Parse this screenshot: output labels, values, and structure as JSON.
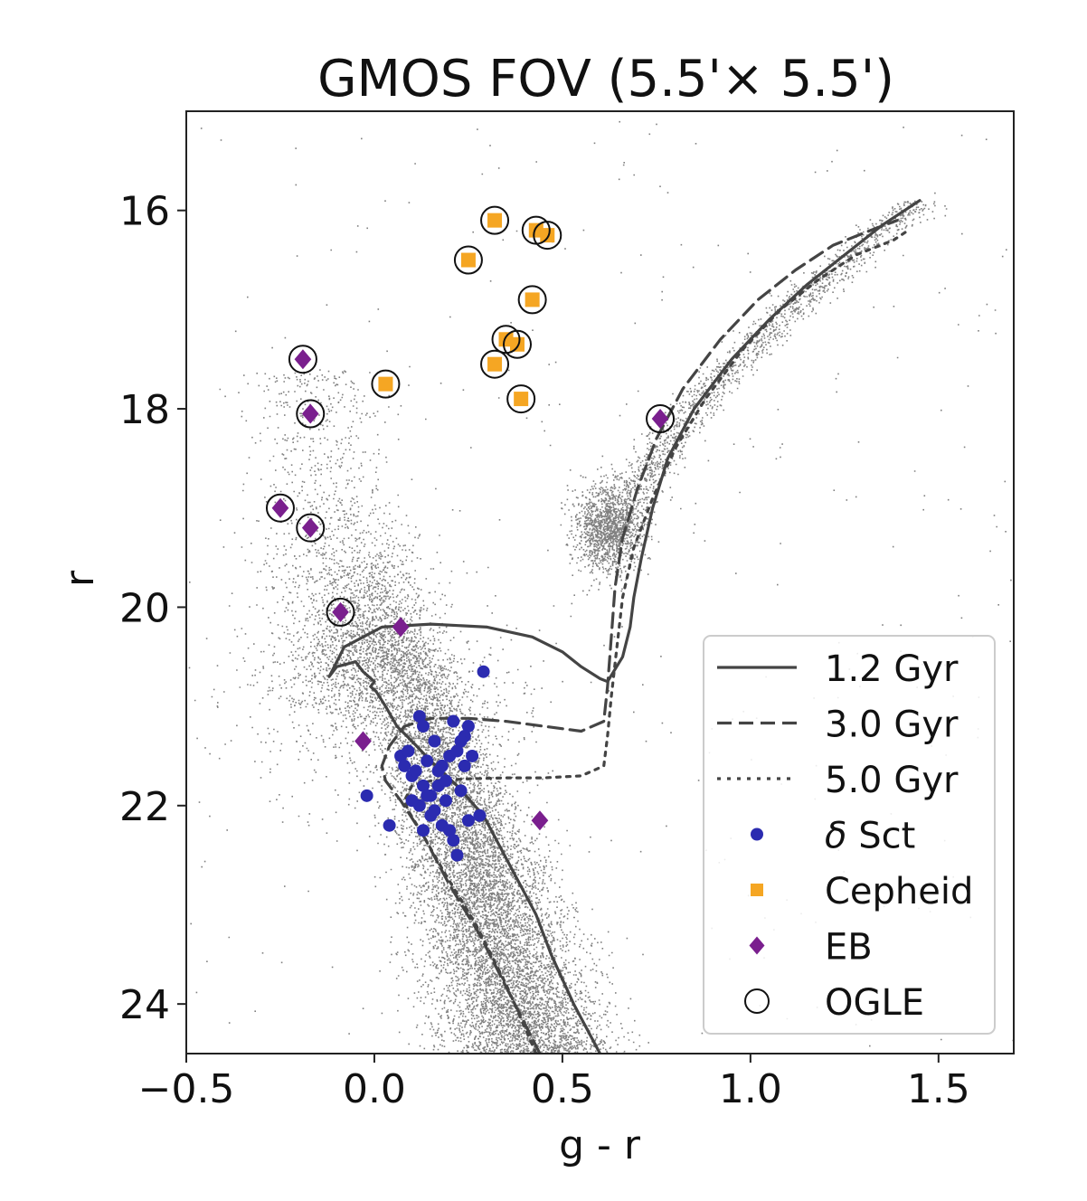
{
  "chart_data": {
    "type": "scatter",
    "title": "GMOS FOV (5.5'× 5.5')",
    "xlabel": "g - r",
    "ylabel": "r",
    "xlim": [
      -0.5,
      1.7
    ],
    "ylim": [
      24.5,
      15.0
    ],
    "y_inverted": true,
    "xticks": [
      -0.5,
      0.0,
      0.5,
      1.0,
      1.5
    ],
    "xtick_labels": [
      "−0.5",
      "0.0",
      "0.5",
      "1.0",
      "1.5"
    ],
    "yticks": [
      16,
      18,
      20,
      22,
      24
    ],
    "ytick_labels": [
      "16",
      "18",
      "20",
      "22",
      "24"
    ],
    "grid": false,
    "legend_position": "bottom-right",
    "background_stars": {
      "description_color": "#808080",
      "components": [
        {
          "name": "main sequence",
          "g_r_center": [
            0.06,
            0.42
          ],
          "r_range": [
            20.0,
            24.5
          ]
        },
        {
          "name": "red clump",
          "g_r_center": 0.62,
          "r_center": 19.2
        },
        {
          "name": "red giant branch",
          "g_r_range": [
            0.6,
            1.45
          ],
          "r_range": [
            15.9,
            19.3
          ]
        },
        {
          "name": "blue plume",
          "g_r_center": -0.15,
          "r_range": [
            17.5,
            21.0
          ]
        }
      ]
    },
    "series": [
      {
        "name": "1.2 Gyr",
        "kind": "line",
        "linestyle": "solid",
        "color": "#444444",
        "x": [
          0.6,
          0.53,
          0.47,
          0.43,
          0.36,
          0.29,
          0.22,
          0.15,
          0.1,
          0.06,
          0.03,
          0.005,
          -0.01,
          0.0,
          -0.03,
          -0.05,
          -0.1,
          -0.12,
          -0.08,
          0.02,
          0.15,
          0.3,
          0.42,
          0.5,
          0.55,
          0.6,
          0.62,
          0.66,
          0.68,
          0.69,
          0.71,
          0.74,
          0.78,
          0.85,
          0.95,
          1.05,
          1.15,
          1.25,
          1.35,
          1.45
        ],
        "y": [
          24.5,
          24.0,
          23.5,
          23.1,
          22.6,
          22.1,
          21.8,
          21.55,
          21.35,
          21.2,
          21.0,
          20.85,
          20.8,
          20.75,
          20.65,
          20.55,
          20.6,
          20.7,
          20.4,
          20.2,
          20.17,
          20.2,
          20.3,
          20.45,
          20.6,
          20.72,
          20.75,
          20.5,
          20.2,
          19.9,
          19.5,
          19.0,
          18.5,
          18.0,
          17.5,
          17.1,
          16.75,
          16.45,
          16.15,
          15.9
        ]
      },
      {
        "name": "3.0 Gyr",
        "kind": "line",
        "linestyle": "dashed",
        "color": "#444444",
        "x": [
          0.44,
          0.36,
          0.28,
          0.2,
          0.13,
          0.07,
          0.03,
          0.02,
          0.04,
          0.08,
          0.15,
          0.25,
          0.35,
          0.45,
          0.55,
          0.61,
          0.62,
          0.63,
          0.64,
          0.66,
          0.7,
          0.75,
          0.82,
          0.92,
          1.02,
          1.12,
          1.22,
          1.32,
          1.39
        ],
        "y": [
          24.5,
          23.9,
          23.3,
          22.8,
          22.3,
          21.95,
          21.75,
          21.6,
          21.4,
          21.2,
          21.12,
          21.12,
          21.15,
          21.2,
          21.25,
          21.15,
          20.8,
          20.3,
          19.8,
          19.3,
          18.8,
          18.3,
          17.8,
          17.3,
          16.9,
          16.6,
          16.35,
          16.2,
          16.1
        ]
      },
      {
        "name": "5.0 Gyr",
        "kind": "line",
        "linestyle": "dotted",
        "color": "#444444",
        "x": [
          0.43,
          0.35,
          0.27,
          0.19,
          0.13,
          0.09,
          0.08,
          0.1,
          0.15,
          0.25,
          0.35,
          0.45,
          0.55,
          0.61,
          0.62,
          0.63,
          0.645,
          0.66,
          0.69,
          0.74,
          0.8,
          0.88,
          0.98,
          1.08,
          1.18,
          1.28,
          1.38,
          1.42
        ],
        "y": [
          24.5,
          23.8,
          23.2,
          22.7,
          22.3,
          22.05,
          21.95,
          21.8,
          21.75,
          21.73,
          21.72,
          21.72,
          21.7,
          21.6,
          21.3,
          20.9,
          20.4,
          19.9,
          19.4,
          18.9,
          18.4,
          17.9,
          17.4,
          17.0,
          16.7,
          16.45,
          16.3,
          16.2
        ]
      },
      {
        "name": "δ Sct",
        "kind": "scatter",
        "marker": "circle",
        "color": "#2b2bb0",
        "points": [
          [
            0.29,
            20.65
          ],
          [
            -0.02,
            21.9
          ],
          [
            0.04,
            22.2
          ],
          [
            0.12,
            21.1
          ],
          [
            0.07,
            21.5
          ],
          [
            0.09,
            21.45
          ],
          [
            0.13,
            21.2
          ],
          [
            0.21,
            21.15
          ],
          [
            0.25,
            21.2
          ],
          [
            0.24,
            21.3
          ],
          [
            0.1,
            21.7
          ],
          [
            0.13,
            21.8
          ],
          [
            0.15,
            21.9
          ],
          [
            0.17,
            21.8
          ],
          [
            0.19,
            21.75
          ],
          [
            0.18,
            21.6
          ],
          [
            0.2,
            21.5
          ],
          [
            0.22,
            21.45
          ],
          [
            0.16,
            21.35
          ],
          [
            0.14,
            21.55
          ],
          [
            0.11,
            21.65
          ],
          [
            0.12,
            22.0
          ],
          [
            0.15,
            22.1
          ],
          [
            0.18,
            22.2
          ],
          [
            0.2,
            22.25
          ],
          [
            0.22,
            22.5
          ],
          [
            0.21,
            22.35
          ],
          [
            0.13,
            22.25
          ],
          [
            0.16,
            22.05
          ],
          [
            0.19,
            21.95
          ],
          [
            0.23,
            21.85
          ],
          [
            0.24,
            21.6
          ],
          [
            0.26,
            21.5
          ],
          [
            0.28,
            22.1
          ],
          [
            0.25,
            22.15
          ],
          [
            0.17,
            21.65
          ],
          [
            0.14,
            21.9
          ],
          [
            0.1,
            21.95
          ],
          [
            0.08,
            21.6
          ],
          [
            0.23,
            21.35
          ]
        ]
      },
      {
        "name": "Cepheid",
        "kind": "scatter",
        "marker": "square",
        "color": "#f5a623",
        "points": [
          [
            0.32,
            16.1
          ],
          [
            0.43,
            16.2
          ],
          [
            0.46,
            16.25
          ],
          [
            0.25,
            16.5
          ],
          [
            0.42,
            16.9
          ],
          [
            0.35,
            17.3
          ],
          [
            0.38,
            17.35
          ],
          [
            0.32,
            17.55
          ],
          [
            0.03,
            17.75
          ],
          [
            0.39,
            17.9
          ]
        ]
      },
      {
        "name": "EB",
        "kind": "scatter",
        "marker": "diamond",
        "color": "#7a1f8e",
        "points": [
          [
            -0.19,
            17.5
          ],
          [
            -0.17,
            18.05
          ],
          [
            0.76,
            18.1
          ],
          [
            -0.25,
            19.0
          ],
          [
            -0.17,
            19.2
          ],
          [
            -0.09,
            20.05
          ],
          [
            0.07,
            20.2
          ],
          [
            -0.03,
            21.35
          ],
          [
            0.44,
            22.15
          ]
        ]
      },
      {
        "name": "OGLE",
        "kind": "scatter",
        "marker": "open-circle",
        "color": "#111111",
        "points": [
          [
            0.32,
            16.1
          ],
          [
            0.43,
            16.2
          ],
          [
            0.46,
            16.25
          ],
          [
            0.25,
            16.5
          ],
          [
            0.42,
            16.9
          ],
          [
            0.35,
            17.3
          ],
          [
            0.38,
            17.35
          ],
          [
            0.32,
            17.55
          ],
          [
            0.03,
            17.75
          ],
          [
            0.39,
            17.9
          ],
          [
            -0.19,
            17.5
          ],
          [
            -0.17,
            18.05
          ],
          [
            0.76,
            18.1
          ],
          [
            -0.25,
            19.0
          ],
          [
            -0.17,
            19.2
          ],
          [
            -0.09,
            20.05
          ]
        ]
      }
    ],
    "legend": [
      "1.2 Gyr",
      "3.0 Gyr",
      "5.0 Gyr",
      "δ Sct",
      "Cepheid",
      "EB",
      "OGLE"
    ]
  }
}
